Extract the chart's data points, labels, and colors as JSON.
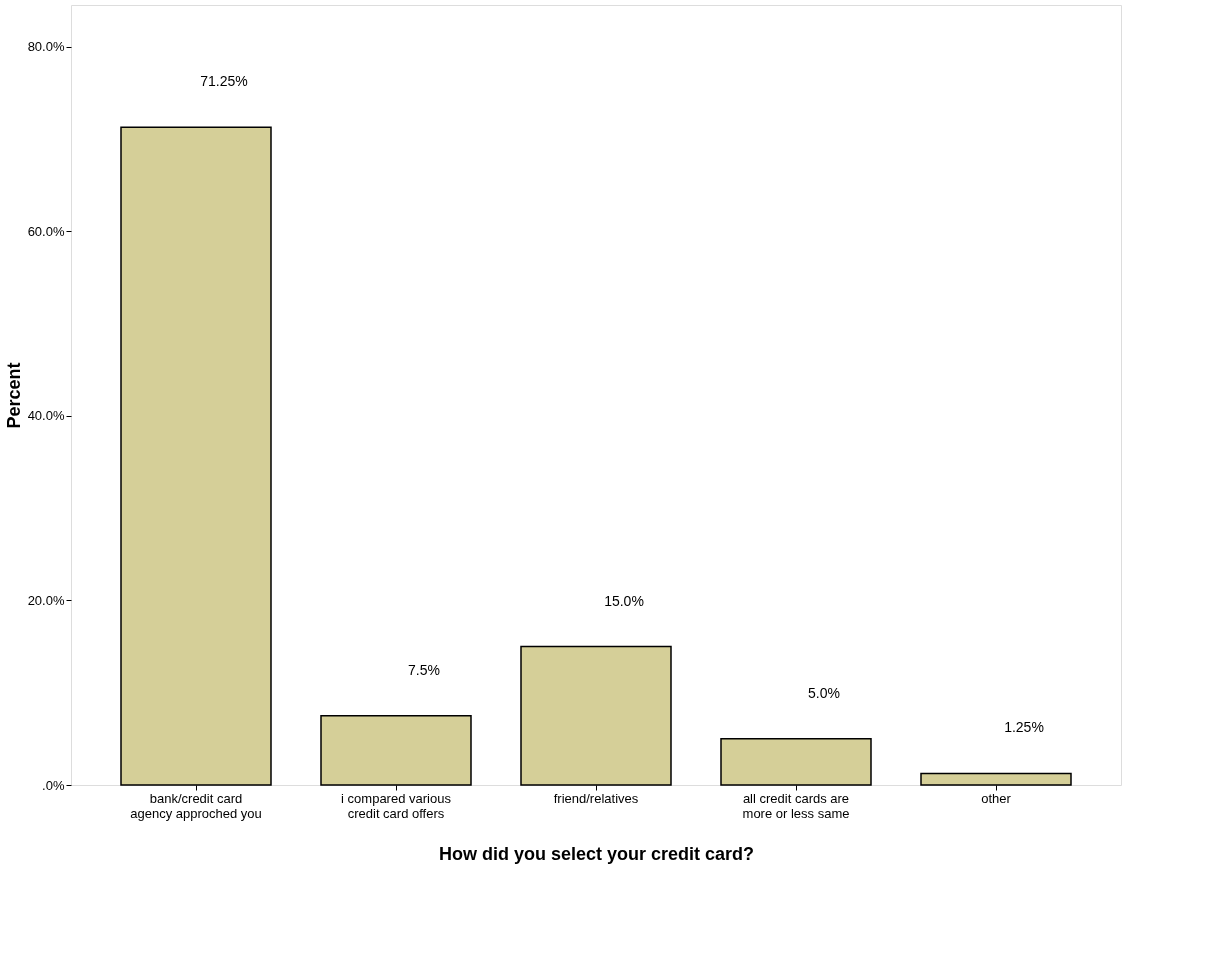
{
  "chart_data": {
    "type": "bar",
    "xlabel": "How did you select your credit card?",
    "ylabel": "Percent",
    "categories": [
      "bank/credit card agency approched you",
      "i compared various credit card offers",
      "friend/relatives",
      "all credit cards are more or less same",
      "other"
    ],
    "values": [
      71.25,
      7.5,
      15.0,
      5.0,
      1.25
    ],
    "value_labels": [
      "71.25%",
      "7.5%",
      "15.0%",
      "5.0%",
      "1.25%"
    ],
    "color": "#d5cf98",
    "ylim": [
      0,
      84.5
    ],
    "yticks": [
      {
        "value": 0,
        "label": ".0%"
      },
      {
        "value": 20,
        "label": "20.0%"
      },
      {
        "value": 40,
        "label": "40.0%"
      },
      {
        "value": 60,
        "label": "60.0%"
      },
      {
        "value": 80,
        "label": "80.0%"
      }
    ],
    "grid": false
  }
}
